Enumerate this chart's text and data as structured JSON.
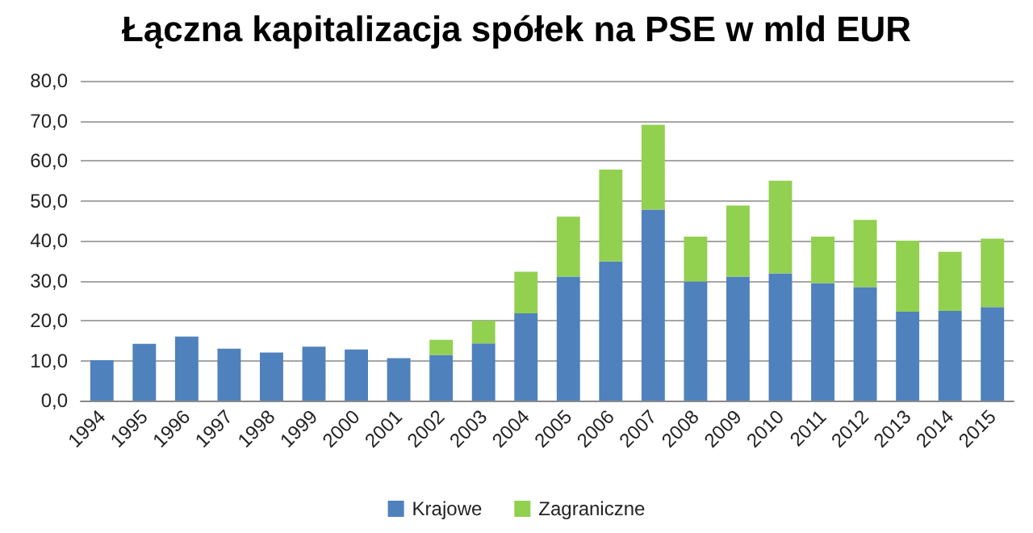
{
  "chart_data": {
    "type": "bar",
    "title": "Łączna kapitalizacja spółek na PSE w mld EUR",
    "stacked": true,
    "categories": [
      "1994",
      "1995",
      "1996",
      "1997",
      "1998",
      "1999",
      "2000",
      "2001",
      "2002",
      "2003",
      "2004",
      "2005",
      "2006",
      "2007",
      "2008",
      "2009",
      "2010",
      "2011",
      "2012",
      "2013",
      "2014",
      "2015"
    ],
    "series": [
      {
        "name": "Krajowe",
        "color": "#4f81bd",
        "values": [
          10.1,
          14.2,
          16.0,
          13.0,
          12.0,
          13.5,
          12.8,
          10.6,
          11.4,
          14.3,
          21.8,
          31.0,
          34.8,
          47.8,
          29.8,
          31.0,
          31.8,
          29.4,
          28.4,
          22.2,
          22.4,
          23.4
        ]
      },
      {
        "name": "Zagraniczne",
        "color": "#92d050",
        "values": [
          null,
          null,
          null,
          null,
          null,
          null,
          null,
          null,
          3.8,
          5.7,
          10.4,
          15.0,
          23.0,
          21.2,
          11.2,
          17.8,
          23.2,
          11.6,
          16.8,
          17.8,
          14.8,
          17.1
        ]
      }
    ],
    "ylim": [
      0,
      80
    ],
    "yticks": [
      {
        "value": 0,
        "label": "0,0"
      },
      {
        "value": 10,
        "label": "10,0"
      },
      {
        "value": 20,
        "label": "20,0"
      },
      {
        "value": 30,
        "label": "30,0"
      },
      {
        "value": 40,
        "label": "40,0"
      },
      {
        "value": 50,
        "label": "50,0"
      },
      {
        "value": 60,
        "label": "60,0"
      },
      {
        "value": 70,
        "label": "70,0"
      },
      {
        "value": 80,
        "label": "80,0"
      }
    ],
    "grid": "y",
    "legend": "bottom"
  }
}
